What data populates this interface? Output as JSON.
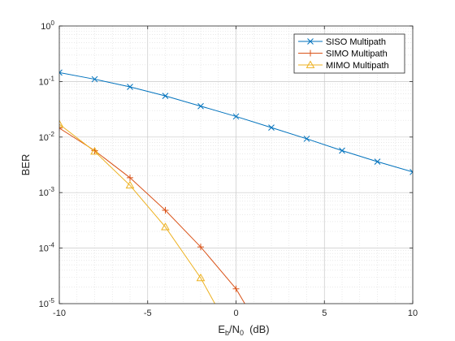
{
  "chart_data": {
    "type": "line",
    "xlabel": {
      "main": "E",
      "sub_b": "b",
      "mid": "/N",
      "sub_0": "0",
      "unit": "(dB)"
    },
    "ylabel": "BER",
    "xlim": [
      -10,
      10
    ],
    "ylim": [
      1e-05,
      1
    ],
    "yscale": "log",
    "grid": true,
    "minor_grid": true,
    "legend_position": "top-right",
    "x_ticks": [
      -10,
      -5,
      0,
      5,
      10
    ],
    "x_tick_labels": [
      "-10",
      "-5",
      "0",
      "5",
      "10"
    ],
    "y_ticks": [
      {
        "value": 1,
        "base": "10",
        "exp": "0"
      },
      {
        "value": 0.1,
        "base": "10",
        "exp": "-1"
      },
      {
        "value": 0.01,
        "base": "10",
        "exp": "-2"
      },
      {
        "value": 0.001,
        "base": "10",
        "exp": "-3"
      },
      {
        "value": 0.0001,
        "base": "10",
        "exp": "-4"
      },
      {
        "value": 1e-05,
        "base": "10",
        "exp": "-5"
      }
    ],
    "series": [
      {
        "name": "SISO Multipath",
        "color": "#0072BD",
        "marker": "x",
        "x": [
          -10,
          -8,
          -6,
          -4,
          -2,
          0,
          2,
          4,
          6,
          8,
          10
        ],
        "y": [
          0.145,
          0.11,
          0.08,
          0.055,
          0.036,
          0.0235,
          0.0148,
          0.0093,
          0.0057,
          0.0036,
          0.00235
        ]
      },
      {
        "name": "SIMO Multipath",
        "color": "#D95319",
        "marker": "+",
        "x": [
          -10,
          -8,
          -6,
          -4,
          -2,
          0,
          0.6
        ],
        "y": [
          0.0145,
          0.0057,
          0.00185,
          0.00048,
          0.000105,
          1.85e-05,
          8.8e-06
        ]
      },
      {
        "name": "MIMO Multipath",
        "color": "#EDB120",
        "marker": "triangle",
        "x": [
          -10,
          -8,
          -6,
          -4,
          -2,
          -1.1
        ],
        "y": [
          0.017,
          0.0055,
          0.00135,
          0.00024,
          2.9e-05,
          8.8e-06
        ]
      }
    ]
  }
}
